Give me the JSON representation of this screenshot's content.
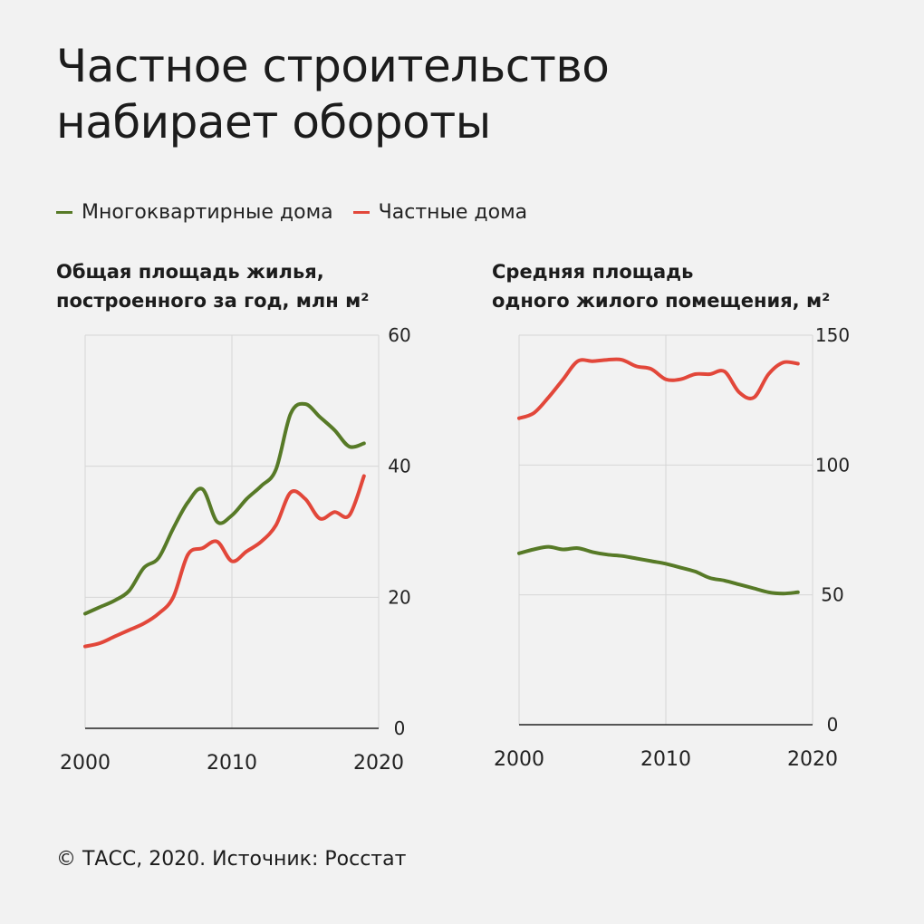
{
  "title": {
    "line1": "Частное строительство",
    "line2": "набирает обороты"
  },
  "legend": [
    {
      "label": "Многоквартирные дома",
      "color": "#577a27"
    },
    {
      "label": "Частные дома",
      "color": "#e2473a"
    }
  ],
  "footer": "© ТАСС, 2020. Источник: Росстат",
  "colors": {
    "apartment": "#577a27",
    "private": "#e2473a",
    "grid": "#d6d6d6",
    "axis": "#222222",
    "background": "#f2f2f2"
  },
  "chart_data": [
    {
      "type": "line",
      "title_line1": "Общая площадь жилья,",
      "title_line2": "построенного за год, млн м²",
      "xlim": [
        2000,
        2020
      ],
      "ylim": [
        0,
        60
      ],
      "x_ticks": [
        "2000",
        "2010",
        "2020"
      ],
      "y_ticks": [
        "0",
        "20",
        "40",
        "60"
      ],
      "y_axis_side": "right",
      "grid": true,
      "x": [
        2000,
        2001,
        2002,
        2003,
        2004,
        2005,
        2006,
        2007,
        2008,
        2009,
        2010,
        2011,
        2012,
        2013,
        2014,
        2015,
        2016,
        2017,
        2018,
        2019
      ],
      "series": [
        {
          "name": "Многоквартирные дома",
          "key": "apartment",
          "values": [
            17.5,
            18.5,
            19.5,
            21,
            24.5,
            26,
            30.5,
            34.5,
            36.5,
            31.5,
            32.5,
            35,
            37,
            39.5,
            48,
            49.5,
            47.5,
            45.5,
            43,
            43.5
          ]
        },
        {
          "name": "Частные дома",
          "key": "private",
          "values": [
            12.5,
            13,
            14,
            15,
            16,
            17.5,
            20,
            26.5,
            27.5,
            28.5,
            25.5,
            27,
            28.5,
            31,
            36,
            35,
            32,
            33,
            32.5,
            38.5
          ]
        }
      ]
    },
    {
      "type": "line",
      "title_line1": "Средняя площадь",
      "title_line2": "одного жилого помещения, м²",
      "xlim": [
        2000,
        2020
      ],
      "ylim": [
        0,
        150
      ],
      "x_ticks": [
        "2000",
        "2010",
        "2020"
      ],
      "y_ticks": [
        "0",
        "50",
        "100",
        "150"
      ],
      "y_axis_side": "right",
      "grid": true,
      "x": [
        2000,
        2001,
        2002,
        2003,
        2004,
        2005,
        2006,
        2007,
        2008,
        2009,
        2010,
        2011,
        2012,
        2013,
        2014,
        2015,
        2016,
        2017,
        2018,
        2019
      ],
      "series": [
        {
          "name": "Многоквартирные дома",
          "key": "apartment",
          "values": [
            66,
            67.5,
            68.5,
            67.5,
            68,
            66.5,
            65.5,
            65,
            64,
            63,
            62,
            60.5,
            59,
            56.5,
            55.5,
            54,
            52.5,
            51,
            50.5,
            51
          ]
        },
        {
          "name": "Частные дома",
          "key": "private",
          "values": [
            118,
            120,
            126,
            133,
            140,
            140,
            140.5,
            140.5,
            138,
            137,
            133,
            133,
            135,
            135,
            136,
            128,
            126,
            135,
            139.5,
            139
          ]
        }
      ]
    }
  ]
}
